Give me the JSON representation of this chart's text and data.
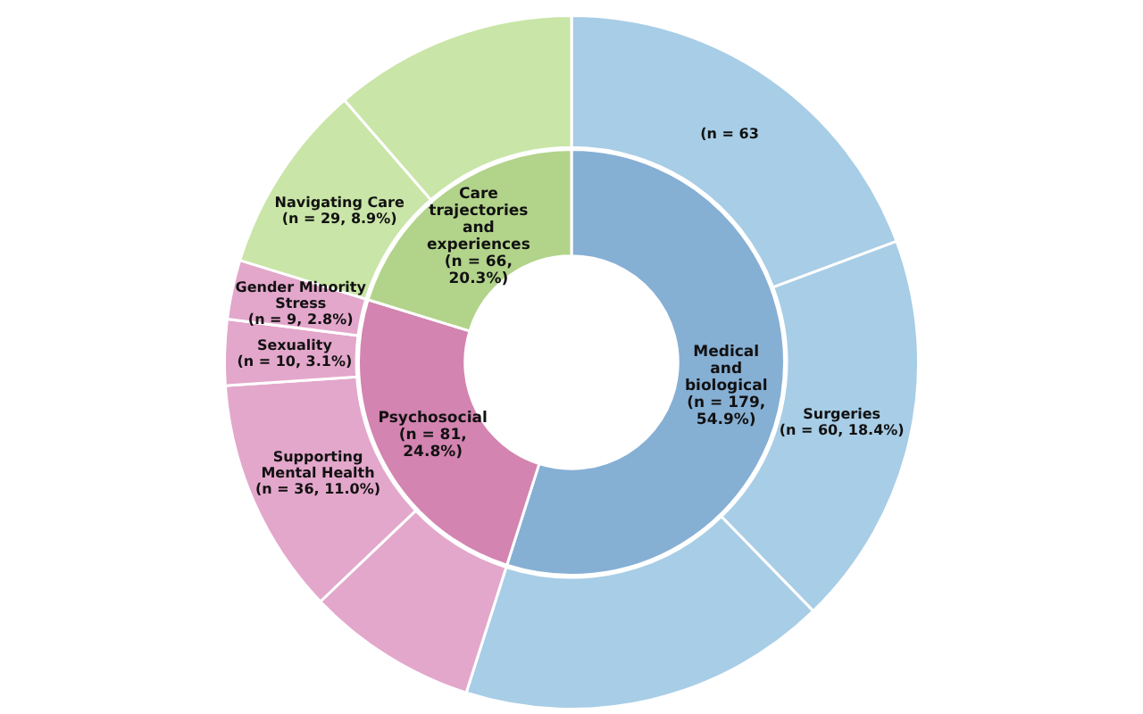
{
  "chart_data": [
    {
      "type": "donut",
      "legend": false,
      "categories": [
        "Medical and biological",
        "Psychosocial",
        "Care trajectories and experiences"
      ],
      "values": [
        179,
        81,
        66
      ],
      "value_labels": [
        "(n = 179, 54.9%)",
        "(n = 81, 24.8%)",
        "(n = 66, 20.3%)"
      ],
      "colors": [
        "#86afd4",
        "#d384b0",
        "#b2d38a"
      ]
    },
    {
      "type": "donut",
      "legend": false,
      "categories": [
        null,
        "Surgeries",
        null,
        null,
        "Supporting Mental Health",
        "Sexuality",
        "Gender Minority Stress",
        "Navigating Care",
        null
      ],
      "values": [
        63,
        60,
        56,
        26,
        36,
        10,
        9,
        29,
        37
      ],
      "value_labels": [
        "(n = 63",
        "(n = 60, 18.4%)",
        null,
        null,
        "(n = 36, 11.0%)",
        "(n = 10, 3.1%)",
        "(n = 9, 2.8%)",
        "(n = 29, 8.9%)",
        null
      ],
      "colors": [
        "#a8cde6",
        "#a8cde6",
        "#a8cde6",
        "#e3a7cb",
        "#e3a7cb",
        "#e3a7cb",
        "#e3a7cb",
        "#c9e5a7",
        "#c9e5a7"
      ]
    }
  ]
}
